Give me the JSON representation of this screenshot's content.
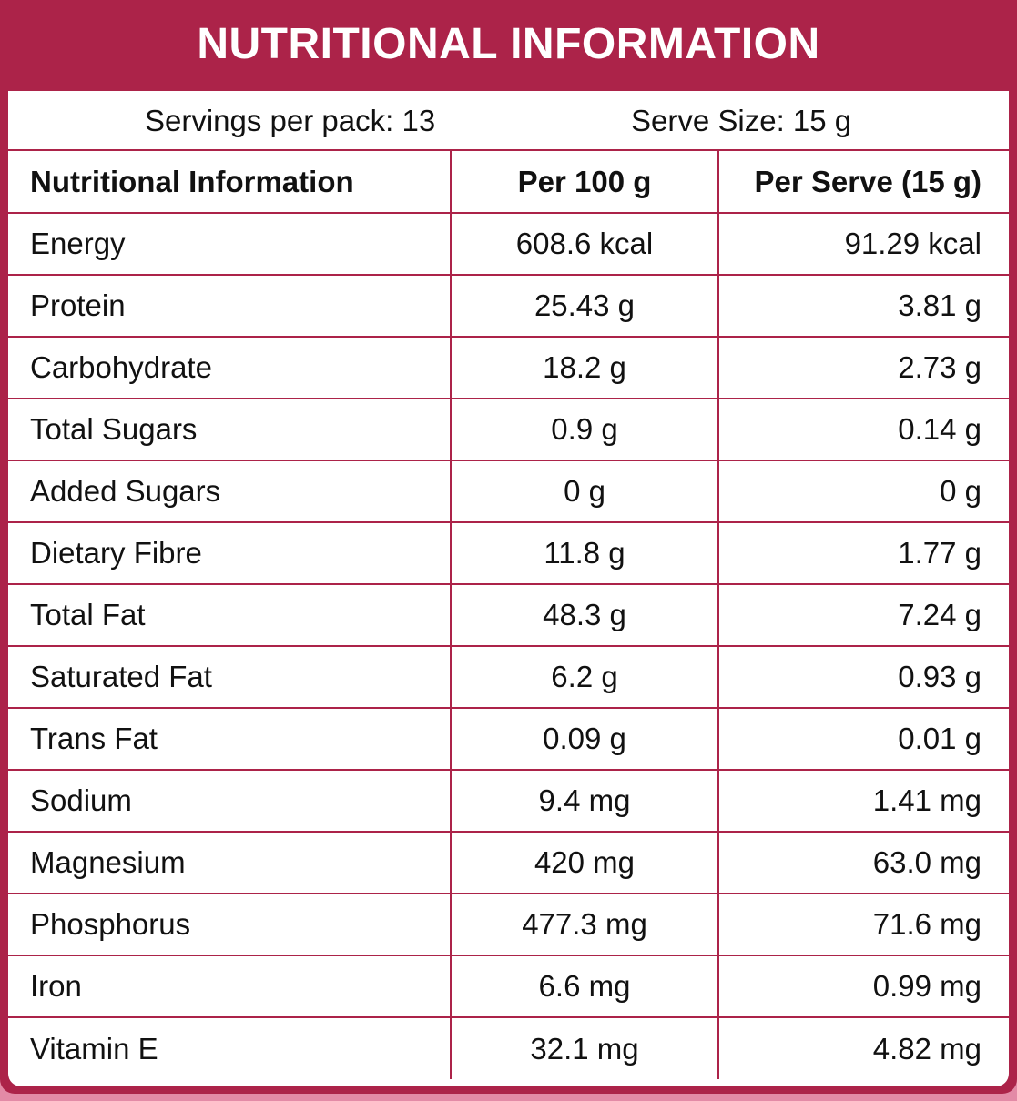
{
  "title": "NUTRITIONAL INFORMATION",
  "servings_per_pack": "Servings per pack: 13",
  "serve_size": "Serve Size: 15 g",
  "table": {
    "headers": [
      "Nutritional Information",
      "Per 100 g",
      "Per Serve (15 g)"
    ],
    "rows": [
      [
        "Energy",
        "608.6 kcal",
        "91.29 kcal"
      ],
      [
        "Protein",
        "25.43 g",
        "3.81 g"
      ],
      [
        "Carbohydrate",
        "18.2 g",
        "2.73 g"
      ],
      [
        "Total Sugars",
        "0.9 g",
        "0.14 g"
      ],
      [
        "Added Sugars",
        "0 g",
        "0 g"
      ],
      [
        "Dietary Fibre",
        "11.8 g",
        "1.77 g"
      ],
      [
        "Total Fat",
        "48.3 g",
        "7.24 g"
      ],
      [
        "Saturated Fat",
        "6.2 g",
        "0.93 g"
      ],
      [
        "Trans Fat",
        "0.09 g",
        "0.01 g"
      ],
      [
        "Sodium",
        "9.4 mg",
        "1.41 mg"
      ],
      [
        "Magnesium",
        "420 mg",
        "63.0 mg"
      ],
      [
        "Phosphorus",
        "477.3 mg",
        "71.6 mg"
      ],
      [
        "Iron",
        "6.6 mg",
        "0.99 mg"
      ],
      [
        "Vitamin E",
        "32.1 mg",
        "4.82 mg"
      ]
    ]
  },
  "colors": {
    "accent": "#ac2349",
    "background": "#e38aa6",
    "panel_background": "#ffffff"
  }
}
